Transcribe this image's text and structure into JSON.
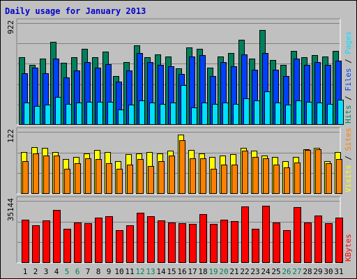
{
  "title": "Daily usage for January 2013",
  "colors": {
    "frame_bg": "#c0c0c0",
    "title_text": "#0000cc",
    "hits": "#00805c",
    "files": "#0040ff",
    "pages": "#00e0ff",
    "visits": "#ffff00",
    "sites": "#ff8000",
    "kbytes": "#ff0000",
    "weekday_label": "#000000",
    "weekend_label": "#00805c"
  },
  "chart_data": [
    {
      "type": "bar",
      "panel": "hits-files-pages",
      "ymax_label": "922",
      "ymax": 922,
      "categories": [
        "1",
        "2",
        "3",
        "4",
        "5",
        "6",
        "7",
        "8",
        "9",
        "10",
        "11",
        "12",
        "13",
        "14",
        "15",
        "16",
        "17",
        "18",
        "19",
        "20",
        "21",
        "22",
        "23",
        "24",
        "25",
        "26",
        "27",
        "28",
        "29",
        "30",
        "31"
      ],
      "weekend_days": [
        "5",
        "6",
        "12",
        "13",
        "19",
        "20",
        "26",
        "27"
      ],
      "legend": [
        {
          "text": "Hits",
          "color": "#00805c"
        },
        {
          "sep": " / "
        },
        {
          "text": "Files",
          "color": "#0040ff"
        },
        {
          "sep": " / "
        },
        {
          "text": "Pages",
          "color": "#00e0ff"
        }
      ],
      "series": [
        {
          "name": "Hits",
          "color": "#00805c",
          "values": [
            610,
            540,
            600,
            750,
            560,
            610,
            690,
            610,
            660,
            440,
            570,
            720,
            610,
            640,
            620,
            510,
            700,
            690,
            520,
            620,
            650,
            770,
            600,
            860,
            590,
            540,
            670,
            610,
            630,
            620,
            670
          ]
        },
        {
          "name": "Files",
          "color": "#0040ff",
          "values": [
            470,
            520,
            470,
            600,
            430,
            490,
            570,
            520,
            550,
            390,
            490,
            650,
            570,
            540,
            530,
            460,
            620,
            630,
            440,
            570,
            530,
            640,
            500,
            650,
            500,
            440,
            600,
            540,
            570,
            540,
            580
          ]
        },
        {
          "name": "Pages",
          "color": "#00e0ff",
          "values": [
            200,
            170,
            180,
            250,
            190,
            200,
            210,
            210,
            210,
            140,
            180,
            220,
            200,
            190,
            200,
            360,
            160,
            200,
            190,
            200,
            190,
            240,
            220,
            300,
            200,
            180,
            220,
            210,
            200,
            190,
            230
          ]
        }
      ]
    },
    {
      "type": "bar",
      "panel": "visits-sites",
      "ymax_label": "122",
      "ymax": 122,
      "legend": [
        {
          "text": "Visits",
          "color": "#ffff00"
        },
        {
          "sep": " / "
        },
        {
          "text": "Sites",
          "color": "#ff8000"
        }
      ],
      "series": [
        {
          "name": "Visits",
          "color": "#ffff00",
          "values": [
            82,
            92,
            90,
            82,
            68,
            72,
            80,
            87,
            82,
            65,
            78,
            80,
            82,
            80,
            85,
            116,
            87,
            80,
            72,
            75,
            78,
            90,
            85,
            75,
            72,
            65,
            73,
            88,
            90,
            65,
            82
          ]
        },
        {
          "name": "Sites",
          "color": "#ff8000",
          "values": [
            65,
            80,
            75,
            75,
            50,
            60,
            70,
            68,
            60,
            50,
            58,
            68,
            55,
            65,
            75,
            105,
            70,
            70,
            50,
            58,
            58,
            85,
            72,
            70,
            58,
            52,
            62,
            87,
            88,
            60,
            68
          ]
        }
      ]
    },
    {
      "type": "bar",
      "panel": "kbytes",
      "ymax_label": "35144",
      "ymax": 35144,
      "legend": [
        {
          "text": "KBytes",
          "color": "#ff0000"
        }
      ],
      "series": [
        {
          "name": "KBytes",
          "color": "#ff0000",
          "values": [
            24500,
            21500,
            24000,
            30000,
            19500,
            23000,
            22500,
            25500,
            26500,
            18500,
            21500,
            28500,
            26500,
            24000,
            23000,
            22500,
            22000,
            27500,
            22000,
            24500,
            23500,
            32000,
            19500,
            32500,
            23000,
            18500,
            31500,
            23000,
            27000,
            22500,
            25500
          ]
        }
      ]
    }
  ]
}
